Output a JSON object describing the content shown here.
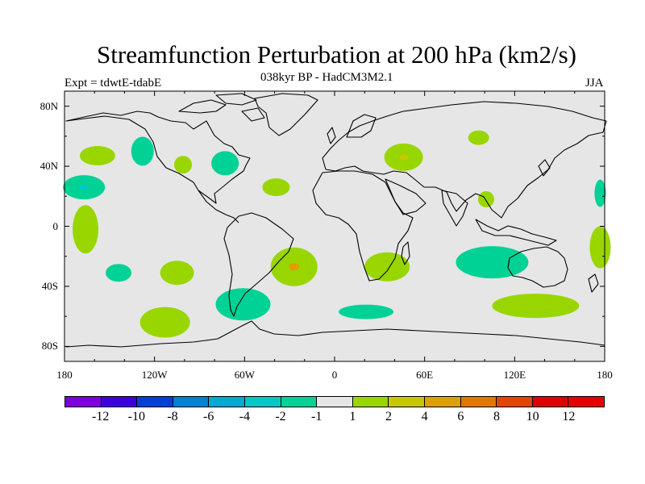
{
  "title": "Streamfunction Perturbation at 200 hPa (km2/s)",
  "subtitle": "038kyr BP - HadCM3M2.1",
  "experiment": "Expt = tdwtE-tdabE",
  "season": "JJA",
  "colors": {
    "background": "#e6e6e6",
    "coast": "#000000",
    "pos_2": "#99d600",
    "pos_4": "#c8c800",
    "pos_6": "#dca000",
    "neg_2": "#00d296",
    "neg_4": "#00c8c8"
  },
  "map": {
    "lon_ticks": [
      "180",
      "120W",
      "60W",
      "0",
      "60E",
      "120E",
      "180"
    ],
    "lat_ticks": [
      "80N",
      "40N",
      "0",
      "40S",
      "80S"
    ],
    "anomalies": [
      {
        "name": "ne-pacific-1",
        "sign": "positive",
        "level": "1 to 2",
        "lon": -158,
        "lat": 47
      },
      {
        "name": "ne-pacific-2",
        "sign": "negative",
        "level": "-2 to -1",
        "lon": -128,
        "lat": 50
      },
      {
        "name": "western-us",
        "sign": "positive",
        "level": "1 to 2",
        "lon": -101,
        "lat": 41
      },
      {
        "name": "east-us",
        "sign": "negative",
        "level": "-2 to -1",
        "lon": -73,
        "lat": 42
      },
      {
        "name": "central-pacific",
        "sign": "negative",
        "level": "-4 to -2",
        "lon": -167,
        "lat": 26
      },
      {
        "name": "mid-atlantic",
        "sign": "positive",
        "level": "1 to 2",
        "lon": -39,
        "lat": 26
      },
      {
        "name": "caspian",
        "sign": "positive",
        "level": "2 to 4",
        "lon": 46,
        "lat": 46
      },
      {
        "name": "siberia",
        "sign": "positive",
        "level": "1 to 2",
        "lon": 96,
        "lat": 59
      },
      {
        "name": "indochina",
        "sign": "positive",
        "level": "1 to 2",
        "lon": 101,
        "lat": 18
      },
      {
        "name": "w-pacific",
        "sign": "negative",
        "level": "-2 to -1",
        "lon": 177,
        "lat": 22
      },
      {
        "name": "sw-pacific",
        "sign": "positive",
        "level": "1 to 2",
        "lon": 177,
        "lat": -14
      },
      {
        "name": "eq-pacific",
        "sign": "positive",
        "level": "1 to 2",
        "lon": -166,
        "lat": -2
      },
      {
        "name": "se-pacific-1",
        "sign": "negative",
        "level": "-2 to -1",
        "lon": -144,
        "lat": -31
      },
      {
        "name": "se-pacific-2",
        "sign": "positive",
        "level": "1 to 2",
        "lon": -105,
        "lat": -31
      },
      {
        "name": "s-atlantic",
        "sign": "positive",
        "level": "4 to 6",
        "lon": -27,
        "lat": -27
      },
      {
        "name": "s-africa",
        "sign": "positive",
        "level": "1 to 2",
        "lon": 35,
        "lat": -27
      },
      {
        "name": "s-indian",
        "sign": "negative",
        "level": "-2 to -1",
        "lon": 105,
        "lat": -24
      },
      {
        "name": "s-america-south",
        "sign": "negative",
        "level": "-2 to -1",
        "lon": -61,
        "lat": -52
      },
      {
        "name": "southern-ocean-1",
        "sign": "positive",
        "level": "1 to 2",
        "lon": -113,
        "lat": -64
      },
      {
        "name": "southern-ocean-2",
        "sign": "negative",
        "level": "-2 to -1",
        "lon": 21,
        "lat": -57
      },
      {
        "name": "southern-ocean-3",
        "sign": "positive",
        "level": "1 to 2",
        "lon": 134,
        "lat": -53
      }
    ]
  },
  "colorbar": {
    "labels": [
      "-12",
      "-10",
      "-8",
      "-6",
      "-4",
      "-2",
      "-1",
      "1",
      "2",
      "4",
      "6",
      "8",
      "10",
      "12"
    ],
    "colors": [
      "#7f00dc",
      "#3c00dc",
      "#0040d2",
      "#0082d2",
      "#00aad2",
      "#00c8c8",
      "#00d296",
      "#e6e6e6",
      "#99d600",
      "#c8c800",
      "#dca000",
      "#e07800",
      "#e04600",
      "#e00000",
      "#e60000"
    ]
  }
}
